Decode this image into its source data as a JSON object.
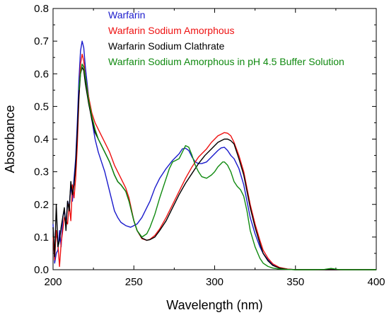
{
  "chart_data": {
    "type": "line",
    "title": "",
    "xlabel": "Wavelength (nm)",
    "ylabel": "Absorbance",
    "xlim": [
      200,
      400
    ],
    "ylim": [
      0.0,
      0.8
    ],
    "xticks": [
      "200",
      "250",
      "300",
      "350",
      "400"
    ],
    "yticks": [
      "0.0",
      "0.1",
      "0.2",
      "0.3",
      "0.4",
      "0.5",
      "0.6",
      "0.7",
      "0.8"
    ],
    "grid": false,
    "legend_position": "top-left",
    "series": [
      {
        "name": "Warfarin",
        "color": "#1a1acc",
        "x": [
          200,
          201,
          202,
          203,
          204,
          205,
          206,
          207,
          208,
          209,
          210,
          211,
          212,
          213,
          214,
          215,
          216,
          217,
          218,
          219,
          220,
          222,
          224,
          226,
          228,
          230,
          232,
          235,
          238,
          240,
          242,
          245,
          248,
          250,
          252,
          255,
          258,
          260,
          263,
          266,
          270,
          274,
          278,
          280,
          282,
          284,
          286,
          288,
          290,
          292,
          295,
          298,
          300,
          302,
          304,
          306,
          308,
          310,
          312,
          315,
          318,
          320,
          322,
          325,
          328,
          330,
          333,
          336,
          340,
          345,
          350,
          360,
          370,
          380,
          390,
          400
        ],
        "y": [
          0.14,
          0.02,
          0.05,
          0.06,
          0.12,
          0.07,
          0.16,
          0.18,
          0.14,
          0.21,
          0.19,
          0.26,
          0.21,
          0.28,
          0.34,
          0.45,
          0.58,
          0.67,
          0.7,
          0.68,
          0.62,
          0.53,
          0.46,
          0.4,
          0.36,
          0.33,
          0.3,
          0.24,
          0.18,
          0.16,
          0.145,
          0.135,
          0.13,
          0.135,
          0.14,
          0.16,
          0.19,
          0.21,
          0.25,
          0.28,
          0.31,
          0.335,
          0.355,
          0.37,
          0.372,
          0.365,
          0.345,
          0.33,
          0.325,
          0.325,
          0.33,
          0.345,
          0.355,
          0.365,
          0.373,
          0.375,
          0.365,
          0.35,
          0.34,
          0.31,
          0.26,
          0.21,
          0.16,
          0.11,
          0.07,
          0.05,
          0.03,
          0.015,
          0.006,
          0.002,
          0.0,
          0.0,
          0.0,
          0.0,
          0.0,
          0.0
        ]
      },
      {
        "name": "Warfarin Sodium Amorphous",
        "color": "#ee1111",
        "x": [
          200,
          201,
          202,
          203,
          204,
          205,
          206,
          207,
          208,
          209,
          210,
          211,
          212,
          213,
          214,
          215,
          216,
          217,
          218,
          219,
          220,
          222,
          224,
          226,
          228,
          230,
          232,
          235,
          238,
          240,
          242,
          245,
          247,
          250,
          252,
          255,
          258,
          260,
          263,
          266,
          270,
          274,
          278,
          282,
          286,
          290,
          292,
          295,
          298,
          300,
          302,
          304,
          306,
          308,
          310,
          312,
          315,
          318,
          320,
          322,
          325,
          328,
          330,
          333,
          336,
          340,
          345,
          350,
          360,
          370,
          380,
          390,
          400
        ],
        "y": [
          0.1,
          0.03,
          0.12,
          0.08,
          0.01,
          0.08,
          0.12,
          0.16,
          0.15,
          0.14,
          0.2,
          0.15,
          0.26,
          0.22,
          0.28,
          0.38,
          0.52,
          0.63,
          0.66,
          0.64,
          0.59,
          0.53,
          0.48,
          0.45,
          0.43,
          0.41,
          0.39,
          0.36,
          0.32,
          0.3,
          0.28,
          0.25,
          0.22,
          0.15,
          0.12,
          0.095,
          0.09,
          0.093,
          0.105,
          0.125,
          0.16,
          0.2,
          0.24,
          0.28,
          0.315,
          0.345,
          0.355,
          0.37,
          0.39,
          0.4,
          0.41,
          0.415,
          0.42,
          0.418,
          0.41,
          0.39,
          0.35,
          0.3,
          0.25,
          0.2,
          0.14,
          0.09,
          0.06,
          0.035,
          0.018,
          0.007,
          0.002,
          0.0,
          0.0,
          0.0,
          0.0,
          0.0,
          0.0
        ]
      },
      {
        "name": "Warfarin Sodium Clathrate",
        "color": "#000000",
        "x": [
          200,
          201,
          202,
          203,
          204,
          205,
          206,
          207,
          208,
          209,
          210,
          211,
          212,
          213,
          214,
          215,
          216,
          217,
          218,
          219,
          220,
          222,
          224,
          226,
          228,
          230,
          232,
          235,
          238,
          240,
          242,
          245,
          247,
          250,
          252,
          255,
          258,
          260,
          263,
          266,
          270,
          274,
          278,
          282,
          286,
          290,
          294,
          298,
          300,
          302,
          304,
          306,
          308,
          310,
          312,
          315,
          318,
          320,
          322,
          325,
          328,
          330,
          333,
          336,
          340,
          345,
          350,
          360,
          370,
          380,
          390,
          400
        ],
        "y": [
          0.13,
          0.04,
          0.2,
          0.07,
          0.09,
          0.13,
          0.16,
          0.19,
          0.12,
          0.21,
          0.18,
          0.27,
          0.23,
          0.26,
          0.32,
          0.42,
          0.53,
          0.6,
          0.62,
          0.61,
          0.57,
          0.51,
          0.46,
          0.42,
          0.4,
          0.38,
          0.36,
          0.33,
          0.29,
          0.27,
          0.26,
          0.24,
          0.21,
          0.15,
          0.12,
          0.097,
          0.09,
          0.092,
          0.1,
          0.12,
          0.15,
          0.19,
          0.23,
          0.265,
          0.295,
          0.325,
          0.35,
          0.37,
          0.38,
          0.39,
          0.395,
          0.4,
          0.4,
          0.395,
          0.385,
          0.34,
          0.29,
          0.24,
          0.19,
          0.13,
          0.08,
          0.05,
          0.027,
          0.013,
          0.005,
          0.001,
          0.0,
          0.0,
          0.0,
          0.0,
          0.0,
          0.0
        ]
      },
      {
        "name": "Warfarin Sodium Amorphous in pH 4.5 Buffer Solution",
        "color": "#108a10",
        "x": [
          216,
          217,
          218,
          219,
          220,
          222,
          224,
          226,
          228,
          230,
          232,
          235,
          238,
          240,
          242,
          245,
          247,
          250,
          252,
          255,
          258,
          260,
          263,
          266,
          270,
          272,
          274,
          276,
          278,
          280,
          282,
          284,
          286,
          288,
          290,
          292,
          295,
          298,
          300,
          302,
          304,
          305,
          306,
          308,
          310,
          312,
          314,
          316,
          318,
          320,
          322,
          325,
          328,
          330,
          333,
          336,
          340,
          345,
          350,
          360,
          368,
          372,
          376,
          380,
          390,
          400
        ],
        "y": [
          0.55,
          0.6,
          0.63,
          0.62,
          0.59,
          0.52,
          0.47,
          0.43,
          0.4,
          0.38,
          0.36,
          0.33,
          0.29,
          0.27,
          0.26,
          0.24,
          0.21,
          0.15,
          0.12,
          0.1,
          0.11,
          0.13,
          0.17,
          0.22,
          0.28,
          0.31,
          0.33,
          0.335,
          0.34,
          0.36,
          0.38,
          0.375,
          0.35,
          0.32,
          0.3,
          0.285,
          0.28,
          0.29,
          0.3,
          0.315,
          0.325,
          0.33,
          0.33,
          0.32,
          0.3,
          0.27,
          0.255,
          0.245,
          0.225,
          0.18,
          0.12,
          0.07,
          0.035,
          0.02,
          0.01,
          0.005,
          0.002,
          0.001,
          0.0,
          0.0,
          0.001,
          0.004,
          0.001,
          0.0,
          0.0,
          0.0
        ]
      }
    ]
  }
}
